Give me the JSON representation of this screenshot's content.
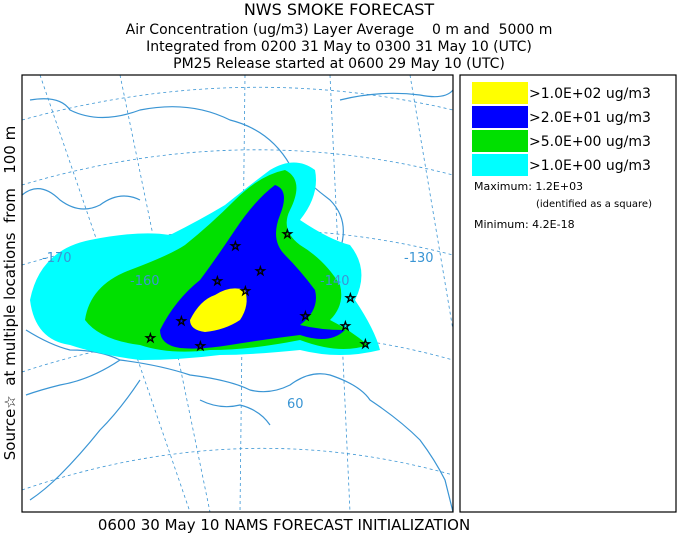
{
  "header": {
    "title": "NWS SMOKE FORECAST",
    "lines": [
      "Air Concentration (ug/m3) Layer Average    0 m and  5000 m",
      "Integrated from 0200 31 May to 0300 31 May 10 (UTC)",
      "PM25 Release started at 0600 29 May 10 (UTC)"
    ]
  },
  "side_label": "Source☆  at multiple locations  from   100 m",
  "map": {
    "lon_labels": [
      "-170",
      "-160",
      "-140",
      "-130"
    ],
    "lat_labels": [
      "60"
    ]
  },
  "legend": {
    "items": [
      {
        "label": ">1.0E+02 ug/m3",
        "color": "#ffff00"
      },
      {
        "label": ">2.0E+01 ug/m3",
        "color": "#0000ff"
      },
      {
        "label": ">5.0E+00 ug/m3",
        "color": "#00e000"
      },
      {
        "label": ">1.0E+00 ug/m3",
        "color": "#00ffff"
      }
    ],
    "maximum": "Maximum: 1.2E+03",
    "maximum_note": "(identified as a square)",
    "minimum": "Minimum: 4.2E-18"
  },
  "footer": "0600 30 May 10 NAMS FORECAST INITIALIZATION"
}
